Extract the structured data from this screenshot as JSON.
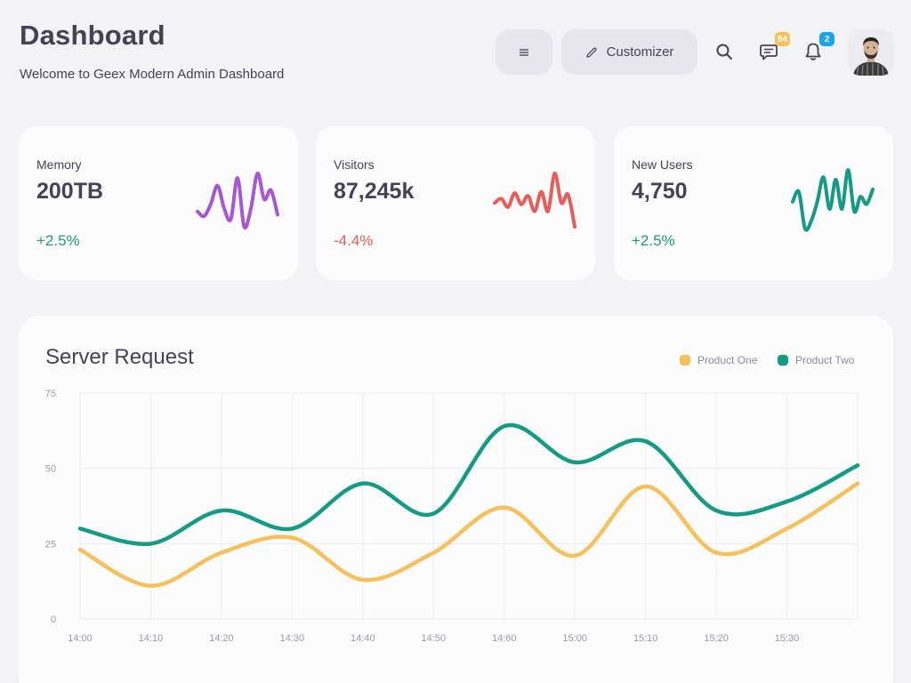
{
  "header": {
    "title": "Dashboard",
    "subtitle": "Welcome to Geex Modern Admin Dashboard",
    "customizer_label": "Customizer",
    "messages_badge": "84",
    "notifications_badge": "2"
  },
  "cards": [
    {
      "label": "Memory",
      "value": "200TB",
      "delta": "+2.5%",
      "delta_color": "#1d9b7c",
      "spark_color": "#a855d6",
      "spark": [
        22,
        19,
        27,
        39,
        24,
        17,
        44,
        12,
        24,
        47,
        30,
        36,
        20
      ]
    },
    {
      "label": "Visitors",
      "value": "87,245k",
      "delta": "-4.4%",
      "delta_color": "#e85c59",
      "spark_color": "#e85c59",
      "spark": [
        30,
        33,
        27,
        37,
        29,
        35,
        24,
        38,
        24,
        51,
        30,
        36,
        13
      ]
    },
    {
      "label": "New Users",
      "value": "4,750",
      "delta": "+2.5%",
      "delta_color": "#1d9b7c",
      "spark_color": "#139b84",
      "spark": [
        38,
        46,
        16,
        22,
        38,
        58,
        32,
        56,
        32,
        64,
        30,
        42,
        36,
        48
      ]
    }
  ],
  "server_request": {
    "title": "Server Request",
    "legend": [
      {
        "name": "Product One",
        "color": "#f6c05a"
      },
      {
        "name": "Product Two",
        "color": "#139b84"
      }
    ]
  },
  "chart_data": {
    "type": "line",
    "title": "Server Request",
    "xlabel": "",
    "ylabel": "",
    "ylim": [
      0,
      75
    ],
    "y_ticks": [
      "0",
      "25",
      "50",
      "75"
    ],
    "categories": [
      "14:00",
      "14:10",
      "14:20",
      "14:30",
      "14:40",
      "14:50",
      "14:60",
      "15:00",
      "15:10",
      "15:20",
      "15:30",
      ""
    ],
    "series": [
      {
        "name": "Product One",
        "values": [
          23,
          11,
          22,
          27,
          13,
          22,
          37,
          21,
          44,
          22,
          30,
          45
        ]
      },
      {
        "name": "Product Two",
        "values": [
          30,
          25,
          36,
          30,
          45,
          35,
          64,
          52,
          59,
          36,
          39,
          51
        ]
      }
    ],
    "grid": true,
    "legend": "top-right"
  }
}
